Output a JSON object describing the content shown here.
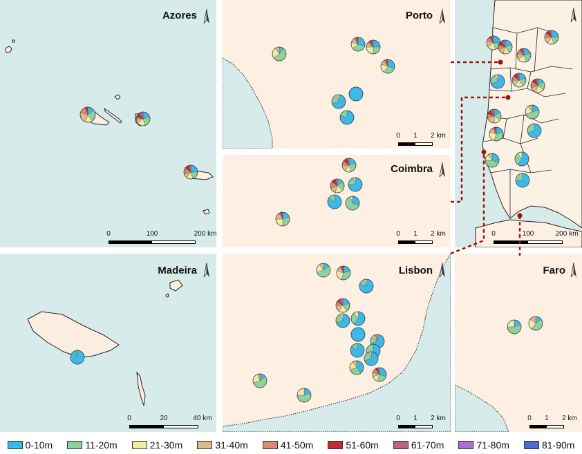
{
  "colors": {
    "sea": "#d7ecea",
    "land": "#fdf0e3",
    "coast": "#222222",
    "connector": "#a01010"
  },
  "legend": [
    {
      "label": "0-10m",
      "color": "#3cb9e9"
    },
    {
      "label": "11-20m",
      "color": "#8ed19c"
    },
    {
      "label": "21-30m",
      "color": "#eeeca5"
    },
    {
      "label": "31-40m",
      "color": "#ddb98a"
    },
    {
      "label": "41-50m",
      "color": "#db8a6b"
    },
    {
      "label": "51-60m",
      "color": "#c22b2b"
    },
    {
      "label": "61-70m",
      "color": "#c0618a"
    },
    {
      "label": "71-80m",
      "color": "#b06dd1"
    },
    {
      "label": "81-90m",
      "color": "#4a6bcf"
    }
  ],
  "panels": {
    "azores": {
      "title": "Azores",
      "scale": [
        "0",
        "100",
        "200 km"
      ]
    },
    "porto": {
      "title": "Porto",
      "scale": [
        "0",
        "1",
        "2 km"
      ]
    },
    "coimbra": {
      "title": "Coimbra",
      "scale": [
        "0",
        "1",
        "2 km"
      ]
    },
    "mainland": {
      "title": "",
      "scale": [
        "0",
        "100",
        "200 km"
      ]
    },
    "madeira": {
      "title": "Madeira",
      "scale": [
        "0",
        "20",
        "40 km"
      ]
    },
    "lisbon": {
      "title": "Lisbon",
      "scale": [
        "0",
        "1",
        "2 km"
      ]
    },
    "faro": {
      "title": "Faro",
      "scale": [
        "0",
        "1",
        "2 km"
      ]
    }
  },
  "pies": {
    "azores": [
      [
        15,
        25,
        15,
        25,
        15,
        5,
        0,
        0,
        0
      ],
      [
        20,
        25,
        20,
        10,
        5,
        10,
        5,
        5,
        0
      ],
      [
        25,
        20,
        15,
        10,
        15,
        10,
        5,
        0,
        0
      ]
    ],
    "porto": [
      [
        10,
        55,
        25,
        10,
        0,
        0,
        0,
        0,
        0
      ],
      [
        30,
        35,
        15,
        10,
        5,
        5,
        0,
        0,
        0
      ],
      [
        25,
        25,
        25,
        10,
        5,
        5,
        5,
        0,
        0
      ],
      [
        30,
        30,
        20,
        10,
        5,
        5,
        0,
        0,
        0
      ],
      [
        70,
        25,
        5,
        0,
        0,
        0,
        0,
        0,
        0
      ],
      [
        100,
        0,
        0,
        0,
        0,
        0,
        0,
        0,
        0
      ],
      [
        80,
        20,
        0,
        0,
        0,
        0,
        0,
        0,
        0
      ]
    ],
    "coimbra": [
      [
        20,
        25,
        15,
        15,
        10,
        10,
        5,
        0,
        0
      ],
      [
        15,
        20,
        20,
        15,
        15,
        10,
        5,
        0,
        0
      ],
      [
        75,
        20,
        5,
        0,
        0,
        0,
        0,
        0,
        0
      ],
      [
        85,
        15,
        0,
        0,
        0,
        0,
        0,
        0,
        0
      ],
      [
        30,
        65,
        5,
        0,
        0,
        0,
        0,
        0,
        0
      ],
      [
        20,
        30,
        25,
        15,
        5,
        5,
        0,
        0,
        0
      ]
    ],
    "mainland": [
      [
        25,
        20,
        20,
        15,
        10,
        5,
        5,
        0,
        0
      ],
      [
        20,
        20,
        15,
        15,
        10,
        10,
        5,
        5,
        0
      ],
      [
        20,
        25,
        20,
        15,
        10,
        5,
        5,
        0,
        0
      ],
      [
        25,
        20,
        15,
        15,
        10,
        10,
        5,
        0,
        0
      ],
      [
        70,
        25,
        5,
        0,
        0,
        0,
        0,
        0,
        0
      ],
      [
        20,
        20,
        20,
        15,
        10,
        10,
        5,
        0,
        0
      ],
      [
        15,
        20,
        20,
        15,
        15,
        10,
        5,
        0,
        0
      ],
      [
        15,
        20,
        15,
        20,
        10,
        10,
        5,
        5,
        0
      ],
      [
        20,
        50,
        20,
        10,
        0,
        0,
        0,
        0,
        0
      ],
      [
        20,
        35,
        25,
        10,
        5,
        5,
        0,
        0,
        0
      ],
      [
        70,
        30,
        0,
        0,
        0,
        0,
        0,
        0,
        0
      ],
      [
        30,
        45,
        15,
        10,
        0,
        0,
        0,
        0,
        0
      ],
      [
        60,
        30,
        10,
        0,
        0,
        0,
        0,
        0,
        0
      ],
      [
        75,
        25,
        0,
        0,
        0,
        0,
        0,
        0,
        0
      ]
    ],
    "madeira": [
      [
        97,
        3,
        0,
        0,
        0,
        0,
        0,
        0,
        0
      ]
    ],
    "lisbon": [
      [
        15,
        55,
        20,
        10,
        0,
        0,
        0,
        0,
        0
      ],
      [
        20,
        35,
        25,
        10,
        5,
        5,
        0,
        0,
        0
      ],
      [
        80,
        15,
        5,
        0,
        0,
        0,
        0,
        0,
        0
      ],
      [
        20,
        20,
        20,
        15,
        10,
        5,
        5,
        5,
        0
      ],
      [
        70,
        25,
        5,
        0,
        0,
        0,
        0,
        0,
        0
      ],
      [
        60,
        30,
        10,
        0,
        0,
        0,
        0,
        0,
        0
      ],
      [
        100,
        0,
        0,
        0,
        0,
        0,
        0,
        0,
        0
      ],
      [
        70,
        15,
        5,
        5,
        5,
        0,
        0,
        0,
        0
      ],
      [
        85,
        15,
        0,
        0,
        0,
        0,
        0,
        0,
        0
      ],
      [
        60,
        40,
        0,
        0,
        0,
        0,
        0,
        0,
        0
      ],
      [
        70,
        25,
        5,
        0,
        0,
        0,
        0,
        0,
        0
      ],
      [
        40,
        30,
        20,
        10,
        0,
        0,
        0,
        0,
        0
      ],
      [
        30,
        25,
        15,
        10,
        10,
        5,
        5,
        0,
        0
      ],
      [
        15,
        55,
        25,
        5,
        0,
        0,
        0,
        0,
        0
      ],
      [
        20,
        55,
        25,
        0,
        0,
        0,
        0,
        0,
        0
      ]
    ],
    "faro": [
      [
        20,
        55,
        25,
        0,
        0,
        0,
        0,
        0,
        0
      ],
      [
        15,
        45,
        25,
        15,
        0,
        0,
        0,
        0,
        0
      ]
    ]
  }
}
